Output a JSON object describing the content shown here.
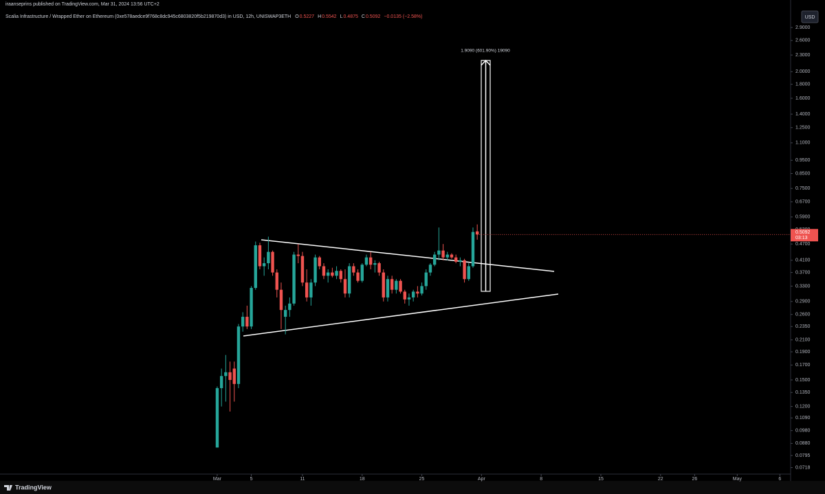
{
  "header": {
    "publisher": "iraanseprins published on TradingView.com, Mar 31, 2024 13:56 UTC+2",
    "symbol": "Scalia Infrastructure / Wrapped Ether on Ethereum (0xe578aedce9f768c8dc945c6803820f5b219870d3) in USD, 12h, UNISWAP3ETH",
    "ohlc": [
      {
        "label": "O",
        "value": "0.5227"
      },
      {
        "label": "H",
        "value": "0.5542"
      },
      {
        "label": "L",
        "value": "0.4875"
      },
      {
        "label": "C",
        "value": "0.5092"
      }
    ],
    "change": "−0.0135 (−2.58%)"
  },
  "currency_button": "USD",
  "chart_data": {
    "type": "candlestick",
    "log_scale": true,
    "up_color": "#26a69a",
    "down_color": "#ef5350",
    "x": [
      0,
      0.5,
      1,
      1.5,
      2,
      2.5,
      3,
      3.5,
      4,
      4.5,
      5,
      5.5,
      6,
      6.5,
      7,
      7.5,
      8,
      8.5,
      9,
      9.5,
      10,
      10.5,
      11,
      11.5,
      12,
      12.5,
      13,
      13.5,
      14,
      14.5,
      15,
      15.5,
      16,
      16.5,
      17,
      17.5,
      18,
      18.5,
      19,
      19.5,
      20,
      20.5,
      21,
      21.5,
      22,
      22.5,
      23,
      23.5,
      24,
      24.5,
      25,
      25.5,
      26,
      26.5,
      27,
      27.5,
      28,
      28.5,
      29,
      29.5,
      30,
      30.5
    ],
    "open": [
      0.085,
      0.14,
      0.155,
      0.16,
      0.165,
      0.145,
      0.235,
      0.255,
      0.235,
      0.325,
      0.465,
      0.39,
      0.4,
      0.44,
      0.37,
      0.32,
      0.255,
      0.27,
      0.285,
      0.43,
      0.425,
      0.34,
      0.3,
      0.34,
      0.42,
      0.39,
      0.36,
      0.37,
      0.36,
      0.375,
      0.35,
      0.31,
      0.39,
      0.37,
      0.345,
      0.395,
      0.42,
      0.395,
      0.4,
      0.37,
      0.3,
      0.35,
      0.32,
      0.345,
      0.315,
      0.295,
      0.3,
      0.315,
      0.31,
      0.33,
      0.37,
      0.395,
      0.43,
      0.445,
      0.42,
      0.43,
      0.42,
      0.405,
      0.41,
      0.35,
      0.39,
      0.5227
    ],
    "high": [
      0.142,
      0.165,
      0.185,
      0.175,
      0.175,
      0.24,
      0.265,
      0.28,
      0.33,
      0.48,
      0.475,
      0.42,
      0.5,
      0.445,
      0.38,
      0.34,
      0.28,
      0.3,
      0.44,
      0.47,
      0.44,
      0.38,
      0.35,
      0.43,
      0.425,
      0.4,
      0.38,
      0.385,
      0.39,
      0.38,
      0.38,
      0.4,
      0.4,
      0.38,
      0.4,
      0.43,
      0.44,
      0.41,
      0.405,
      0.38,
      0.36,
      0.36,
      0.35,
      0.35,
      0.32,
      0.31,
      0.32,
      0.33,
      0.34,
      0.38,
      0.4,
      0.44,
      0.54,
      0.47,
      0.44,
      0.435,
      0.43,
      0.42,
      0.415,
      0.4,
      0.54,
      0.5542
    ],
    "low": [
      0.085,
      0.12,
      0.125,
      0.115,
      0.125,
      0.14,
      0.225,
      0.23,
      0.23,
      0.32,
      0.38,
      0.36,
      0.38,
      0.36,
      0.3,
      0.23,
      0.22,
      0.255,
      0.28,
      0.4,
      0.33,
      0.29,
      0.28,
      0.33,
      0.38,
      0.35,
      0.34,
      0.355,
      0.35,
      0.34,
      0.3,
      0.3,
      0.36,
      0.34,
      0.34,
      0.39,
      0.38,
      0.37,
      0.36,
      0.29,
      0.29,
      0.31,
      0.31,
      0.31,
      0.285,
      0.28,
      0.29,
      0.3,
      0.305,
      0.32,
      0.36,
      0.39,
      0.41,
      0.41,
      0.41,
      0.415,
      0.4,
      0.39,
      0.34,
      0.345,
      0.385,
      0.4875
    ],
    "close": [
      0.14,
      0.155,
      0.16,
      0.15,
      0.145,
      0.235,
      0.255,
      0.235,
      0.325,
      0.465,
      0.39,
      0.4,
      0.44,
      0.37,
      0.32,
      0.27,
      0.27,
      0.285,
      0.43,
      0.425,
      0.34,
      0.3,
      0.34,
      0.42,
      0.39,
      0.36,
      0.37,
      0.36,
      0.375,
      0.35,
      0.31,
      0.39,
      0.37,
      0.345,
      0.395,
      0.42,
      0.395,
      0.4,
      0.37,
      0.3,
      0.35,
      0.32,
      0.345,
      0.315,
      0.295,
      0.3,
      0.315,
      0.31,
      0.33,
      0.37,
      0.395,
      0.43,
      0.445,
      0.42,
      0.43,
      0.42,
      0.405,
      0.41,
      0.35,
      0.39,
      0.52,
      0.5092
    ],
    "xlim": [
      -25.48,
      67.26
    ],
    "xticks": [
      {
        "value": 0,
        "label": "Mar"
      },
      4,
      10,
      17,
      24,
      {
        "value": 31,
        "label": "Apr"
      },
      38,
      45,
      52,
      56,
      {
        "value": 61,
        "label": "May"
      },
      66
    ],
    "xtick_labels": [
      "Mar",
      "5",
      "11",
      "18",
      "25",
      "Apr",
      "8",
      "15",
      "22",
      "26",
      "May",
      "6"
    ],
    "ylim": [
      0.068,
      3.35
    ],
    "yticks": [
      {
        "value": 2.9,
        "label": "2.9000"
      },
      {
        "value": 2.6,
        "label": "2.6000"
      },
      {
        "value": 2.3,
        "label": "2.3000"
      },
      {
        "value": 2,
        "label": "2.0000"
      },
      {
        "value": 1.8,
        "label": "1.8000"
      },
      {
        "value": 1.6,
        "label": "1.6000"
      },
      {
        "value": 1.4,
        "label": "1.4000"
      },
      {
        "value": 1.25,
        "label": "1.2500"
      },
      {
        "value": 1.1,
        "label": "1.1000"
      },
      {
        "value": 0.95,
        "label": "0.9500"
      },
      {
        "value": 0.85,
        "label": "0.8500"
      },
      {
        "value": 0.75,
        "label": "0.7500"
      },
      {
        "value": 0.67,
        "label": "0.6700"
      },
      {
        "value": 0.59,
        "label": "0.5900"
      },
      {
        "value": 0.53,
        "label": "0.5300"
      },
      {
        "value": 0.47,
        "label": "0.4700"
      },
      {
        "value": 0.41,
        "label": "0.4100"
      },
      {
        "value": 0.37,
        "label": "0.3700"
      },
      {
        "value": 0.33,
        "label": "0.3300"
      },
      {
        "value": 0.29,
        "label": "0.2900"
      },
      {
        "value": 0.26,
        "label": "0.2600"
      },
      {
        "value": 0.235,
        "label": "0.2350"
      },
      {
        "value": 0.21,
        "label": "0.2100"
      },
      {
        "value": 0.19,
        "label": "0.1900"
      },
      {
        "value": 0.17,
        "label": "0.1700"
      },
      {
        "value": 0.15,
        "label": "0.1500"
      },
      {
        "value": 0.135,
        "label": "0.1350"
      },
      {
        "value": 0.12,
        "label": "0.1200"
      },
      {
        "value": 0.109,
        "label": "0.1090"
      },
      {
        "value": 0.098,
        "label": "0.0980"
      },
      {
        "value": 0.088,
        "label": "0.0880"
      },
      {
        "value": 0.0795,
        "label": "0.0795"
      },
      {
        "value": 0.0718,
        "label": "0.0718"
      }
    ],
    "last_price_label": "0.5092",
    "countdown": "03:13",
    "annotation": "1.9090 (601.90%) 19090"
  },
  "footer": {
    "brand": "TradingView"
  }
}
